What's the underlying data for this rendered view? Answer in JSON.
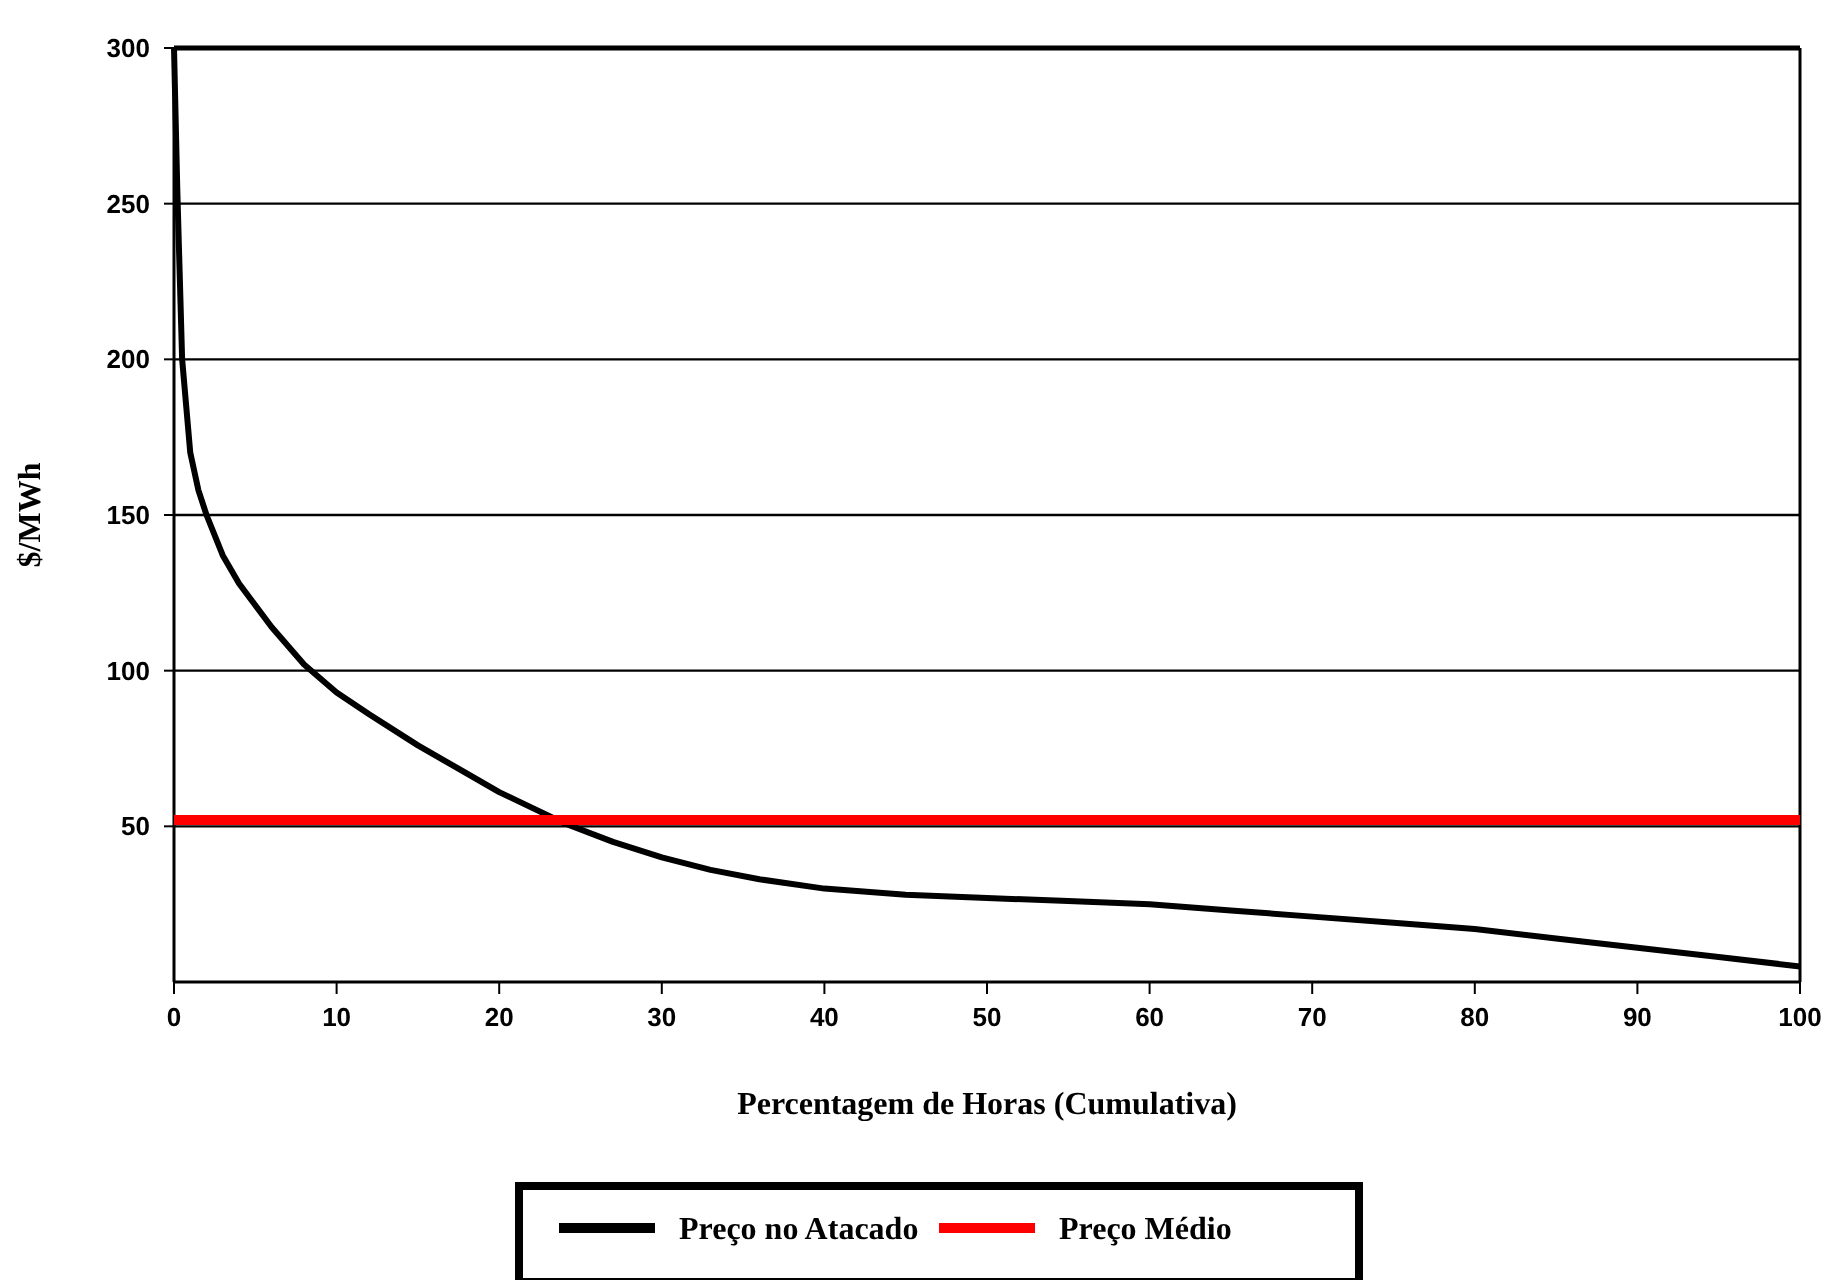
{
  "chart_data": {
    "type": "line",
    "xlabel": "Percentagem de Horas (Cumulativa)",
    "ylabel": "$/MWh",
    "xlim": [
      0,
      100
    ],
    "xticks": [
      0,
      10,
      20,
      30,
      40,
      50,
      60,
      70,
      80,
      90,
      100
    ],
    "ylim": [
      0,
      300
    ],
    "yticks": [
      50,
      100,
      150,
      200,
      250,
      300
    ],
    "grid": "y",
    "legend": "bottom",
    "marker": "none",
    "line_style": "solid",
    "series": [
      {
        "name": "Preço no Atacado",
        "color": "#000000",
        "x": [
          0,
          0.2,
          0.5,
          1,
          1.5,
          2,
          3,
          4,
          5,
          6,
          8,
          10,
          12,
          15,
          18,
          20,
          22,
          24,
          27,
          30,
          33,
          36,
          40,
          45,
          50,
          55,
          60,
          65,
          70,
          75,
          80,
          85,
          90,
          95,
          100
        ],
        "values": [
          300,
          255,
          200,
          170,
          158,
          150,
          137,
          128,
          121,
          114,
          102,
          93,
          86,
          76,
          67,
          61,
          56,
          51,
          45,
          40,
          36,
          33,
          30,
          28,
          27,
          26,
          25,
          23,
          21,
          19,
          17,
          14,
          11,
          8,
          5
        ]
      },
      {
        "name": "Preço Médio",
        "color": "#ff0000",
        "x": [
          0,
          100
        ],
        "values": [
          52,
          52
        ]
      }
    ]
  }
}
